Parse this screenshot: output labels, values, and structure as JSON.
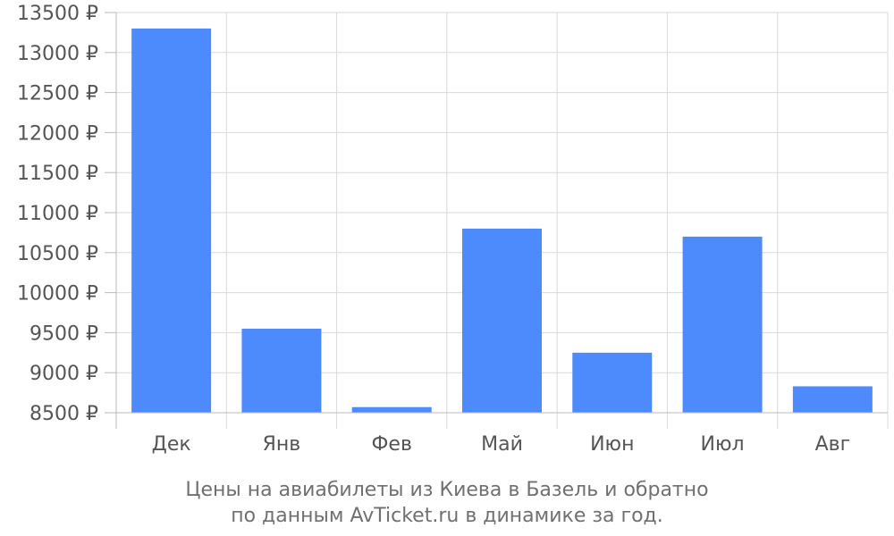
{
  "chart_data": {
    "type": "bar",
    "categories": [
      "Дек",
      "Янв",
      "Фев",
      "Май",
      "Июн",
      "Июл",
      "Авг"
    ],
    "values": [
      13300,
      9550,
      8570,
      10800,
      9250,
      10700,
      8830
    ],
    "ylim": [
      8500,
      13500
    ],
    "y_ticks": [
      8500,
      9000,
      9500,
      10000,
      10500,
      11000,
      11500,
      12000,
      12500,
      13000,
      13500
    ],
    "y_tick_suffix": " ₽",
    "grid": true,
    "bar_color": "#4d8afb",
    "grid_color": "#d9d9d9",
    "axis_color": "#bbbbbb",
    "caption_lines": [
      "Цены на авиабилеты из Киева в Базель и обратно",
      "по данным AvTicket.ru в динамике за год."
    ]
  }
}
